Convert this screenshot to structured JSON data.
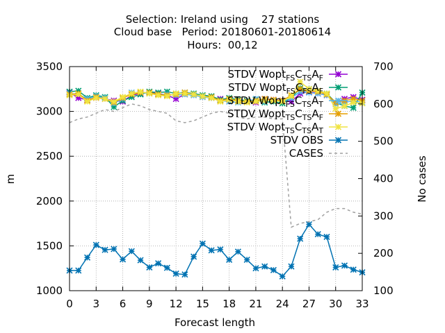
{
  "chart_data": {
    "type": "line",
    "title": [
      "Selection: Ireland using    27 stations",
      "Cloud base   Period: 20180601-20180614",
      "Hours:  00,12"
    ],
    "xlabel": "Forecast length",
    "ylabel": "m",
    "y2label": "No cases",
    "xlim": [
      0,
      33
    ],
    "ylim": [
      1000,
      3500
    ],
    "y2lim": [
      100,
      700
    ],
    "xticks": [
      0,
      3,
      6,
      9,
      12,
      15,
      18,
      21,
      24,
      27,
      30,
      33
    ],
    "yticks": [
      1000,
      1500,
      2000,
      2500,
      3000,
      3500
    ],
    "y2ticks": [
      100,
      200,
      300,
      400,
      500,
      600,
      700
    ],
    "grid": true,
    "legend_position": "top-right",
    "x": [
      0,
      1,
      2,
      3,
      4,
      5,
      6,
      7,
      8,
      9,
      10,
      11,
      12,
      13,
      14,
      15,
      16,
      17,
      18,
      19,
      20,
      21,
      22,
      23,
      24,
      25,
      26,
      27,
      28,
      29,
      30,
      31,
      32,
      33
    ],
    "series": [
      {
        "name": "STDV Wopt_{FS}C_{TS}A_F",
        "label_main": "STDV Wopt",
        "label_sub1": "FS",
        "label_mid": "C",
        "label_sub2": "TS",
        "label_end": "A",
        "label_sub3": "F",
        "axis": "y",
        "color": "#9400d3",
        "marker": "x",
        "values": [
          3210,
          3150,
          3130,
          3150,
          3140,
          3120,
          3110,
          3180,
          3200,
          3210,
          3200,
          3180,
          3140,
          3190,
          3190,
          3170,
          3150,
          3140,
          3130,
          3120,
          3110,
          3100,
          3140,
          3130,
          3120,
          3110,
          3200,
          3220,
          3200,
          3180,
          3100,
          3140,
          3160,
          3130
        ]
      },
      {
        "name": "STDV Wopt_{FS}C_{FS}A_F",
        "label_main": "STDV Wopt",
        "label_sub1": "FS",
        "label_mid": "C",
        "label_sub2": "FS",
        "label_end": "A",
        "label_sub3": "F",
        "axis": "y",
        "color": "#009e73",
        "marker": "x",
        "values": [
          3220,
          3230,
          3150,
          3180,
          3160,
          3050,
          3120,
          3160,
          3190,
          3220,
          3210,
          3220,
          3200,
          3210,
          3200,
          3180,
          3170,
          3130,
          3150,
          3130,
          3120,
          3130,
          3100,
          3110,
          3090,
          3150,
          3260,
          3250,
          3230,
          3200,
          3100,
          3060,
          3040,
          3210
        ]
      },
      {
        "name": "STDV Wopt_{FS}C_{TS}A_T",
        "label_main": "STDV Wopt",
        "label_sub1": "FS",
        "label_mid": "C",
        "label_sub2": "TS",
        "label_end": "A",
        "label_sub3": "T",
        "axis": "y",
        "color": "#56b4e9",
        "marker": "x",
        "values": [
          3200,
          3190,
          3140,
          3170,
          3150,
          3090,
          3140,
          3210,
          3210,
          3200,
          3190,
          3190,
          3180,
          3190,
          3180,
          3160,
          3150,
          3120,
          3110,
          3100,
          3110,
          3140,
          3110,
          3120,
          3110,
          3150,
          3220,
          3210,
          3200,
          3180,
          3080,
          3100,
          3120,
          3100
        ]
      },
      {
        "name": "STDV Wopt_{TS}C_{TS}A_F",
        "label_main": "STDV Wopt",
        "label_sub1": "TS",
        "label_mid": "C",
        "label_sub2": "TS",
        "label_end": "A",
        "label_sub3": "F",
        "axis": "y",
        "color": "#e69f00",
        "marker": "x",
        "values": [
          3190,
          3200,
          3120,
          3160,
          3140,
          3100,
          3150,
          3190,
          3210,
          3210,
          3190,
          3180,
          3190,
          3210,
          3190,
          3170,
          3160,
          3120,
          3140,
          3120,
          3110,
          3120,
          3140,
          3130,
          3120,
          3180,
          3250,
          3230,
          3220,
          3190,
          3100,
          3120,
          3140,
          3120
        ]
      },
      {
        "name": "STDV Wopt_{TS}C_{TS}A_T",
        "label_main": "STDV Wopt",
        "label_sub1": "TS",
        "label_mid": "C",
        "label_sub2": "TS",
        "label_end": "A",
        "label_sub3": "T",
        "axis": "y",
        "color": "#f0e442",
        "marker": "x",
        "values": [
          3180,
          3190,
          3110,
          3150,
          3140,
          3110,
          3160,
          3200,
          3220,
          3200,
          3180,
          3170,
          3200,
          3200,
          3190,
          3170,
          3150,
          3110,
          3130,
          3110,
          3100,
          3110,
          3120,
          3120,
          3110,
          3170,
          3330,
          3250,
          3230,
          3200,
          3030,
          3060,
          3100,
          3090
        ]
      },
      {
        "name": "STDV OBS",
        "label_main": "STDV OBS",
        "axis": "y",
        "color": "#0072b2",
        "marker": "x",
        "values": [
          1225,
          1225,
          1370,
          1510,
          1455,
          1465,
          1350,
          1440,
          1340,
          1260,
          1305,
          1255,
          1190,
          1180,
          1380,
          1525,
          1450,
          1460,
          1345,
          1435,
          1345,
          1250,
          1270,
          1230,
          1160,
          1270,
          1580,
          1740,
          1630,
          1600,
          1260,
          1280,
          1235,
          1205
        ]
      },
      {
        "name": "CASES",
        "label_main": "CASES",
        "axis": "y2",
        "color": "#a0a0a0",
        "dash": true,
        "values": [
          550,
          560,
          565,
          575,
          585,
          580,
          590,
          600,
          595,
          585,
          580,
          575,
          555,
          550,
          555,
          565,
          575,
          580,
          575,
          565,
          560,
          565,
          565,
          560,
          560,
          270,
          280,
          285,
          290,
          310,
          320,
          320,
          310,
          305
        ]
      }
    ]
  }
}
